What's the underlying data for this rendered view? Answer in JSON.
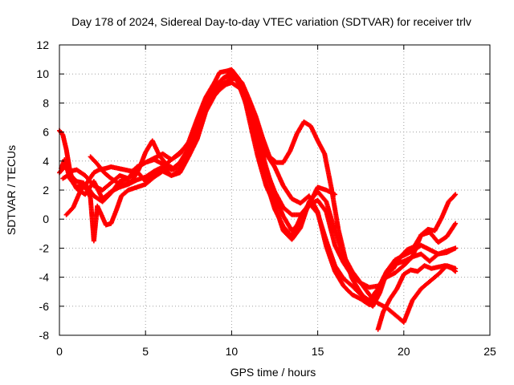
{
  "chart_data": {
    "type": "scatter",
    "title": "Day 178 of 2024, Sidereal Day-to-day VTEC variation (SDTVAR) for receiver trlv",
    "xlabel": "GPS time / hours",
    "ylabel": "SDTVAR / TECUs",
    "xlim": [
      0,
      25
    ],
    "ylim": [
      -8,
      12
    ],
    "x_ticks": [
      "0",
      "5",
      "10",
      "15",
      "20",
      "25"
    ],
    "y_ticks": [
      "-8",
      "-6",
      "-4",
      "-2",
      "0",
      "2",
      "4",
      "6",
      "8",
      "10",
      "12"
    ],
    "grid": true,
    "marker": "+",
    "series_color": "#ff0000",
    "series": [
      {
        "x": [
          0.0,
          0.3,
          0.6,
          1.0,
          1.5,
          2.0,
          2.5,
          3.0,
          3.5,
          4.0,
          4.5,
          5.0,
          5.5,
          6.0,
          6.5,
          7.0,
          7.5,
          8.0,
          8.5,
          9.0,
          9.5,
          10.0,
          10.3,
          10.6,
          11.0,
          11.5,
          12.0,
          12.5,
          13.0,
          13.5,
          14.0,
          14.5,
          15.0,
          15.5,
          16.0
        ],
        "y": [
          3.2,
          3.6,
          3.3,
          3.4,
          3.0,
          2.3,
          2.0,
          2.5,
          3.0,
          2.8,
          3.3,
          2.6,
          3.0,
          3.6,
          4.1,
          4.6,
          5.2,
          6.2,
          7.6,
          8.6,
          9.1,
          9.6,
          9.8,
          9.2,
          7.9,
          5.8,
          3.6,
          1.6,
          0.2,
          -0.8,
          -0.2,
          1.0,
          2.2,
          2.0,
          1.7
        ]
      },
      {
        "x": [
          0.0,
          0.2,
          0.4,
          0.6,
          0.8,
          1.0,
          1.5,
          2.0,
          2.5,
          3.0,
          3.5,
          4.0,
          4.5,
          5.0,
          5.5,
          6.0,
          6.5,
          7.0,
          7.5,
          8.0,
          8.5,
          9.0,
          9.5,
          10.0,
          10.5,
          11.0,
          11.5,
          12.0,
          12.5,
          13.0,
          13.5,
          14.0,
          14.5,
          15.0,
          15.5,
          16.0,
          16.5,
          17.0,
          17.5,
          18.0,
          18.5,
          19.0,
          19.5,
          20.0,
          20.5,
          21.0,
          21.5,
          22.0,
          22.5,
          23.0
        ],
        "y": [
          6.1,
          5.8,
          4.8,
          3.4,
          2.5,
          2.1,
          1.7,
          2.6,
          1.4,
          1.9,
          2.2,
          2.4,
          2.7,
          2.9,
          3.3,
          3.6,
          3.0,
          3.3,
          4.6,
          6.6,
          8.1,
          9.1,
          9.7,
          9.9,
          9.3,
          7.6,
          5.0,
          2.6,
          0.7,
          -0.5,
          -1.2,
          0.1,
          1.1,
          0.4,
          -1.5,
          -3.2,
          -4.1,
          -4.6,
          -5.2,
          -5.6,
          -4.8,
          -3.6,
          -2.8,
          -2.5,
          -2.2,
          -1.8,
          -2.1,
          -2.4,
          -2.3,
          -2.0
        ]
      },
      {
        "x": [
          0.1,
          0.3,
          0.6,
          1.0,
          1.5,
          2.0,
          2.5,
          3.0,
          3.5,
          4.0,
          4.5,
          5.0,
          5.5,
          6.0,
          6.5,
          7.0,
          7.5,
          8.0,
          8.5,
          9.0,
          9.5,
          10.0,
          10.3,
          10.7,
          11.0,
          11.5,
          12.0,
          12.5,
          13.0,
          13.5,
          14.0,
          14.5,
          15.0,
          15.5,
          16.0,
          16.5,
          17.0,
          17.5,
          18.0,
          18.5,
          19.0,
          19.5,
          20.0,
          20.5,
          21.0,
          21.5,
          22.0,
          22.5,
          23.0
        ],
        "y": [
          3.5,
          4.1,
          2.8,
          2.2,
          2.4,
          1.6,
          1.2,
          1.8,
          2.6,
          2.8,
          3.6,
          3.9,
          4.1,
          3.8,
          3.4,
          3.5,
          4.6,
          6.1,
          7.9,
          8.9,
          9.7,
          10.1,
          9.6,
          8.6,
          7.0,
          4.4,
          2.3,
          1.0,
          -0.8,
          -1.4,
          -0.6,
          1.2,
          1.9,
          1.2,
          -0.8,
          -2.5,
          -3.6,
          -4.4,
          -5.2,
          -5.8,
          -6.1,
          -6.6,
          -7.1,
          -5.6,
          -4.8,
          -4.3,
          -3.8,
          -3.2,
          -3.4
        ]
      },
      {
        "x": [
          0.4,
          0.8,
          1.2,
          1.6,
          2.0,
          2.3,
          2.7,
          3.0,
          3.4,
          3.8,
          4.2,
          4.6,
          5.0,
          5.5,
          6.0,
          6.5,
          7.0,
          7.5,
          8.0,
          8.5,
          9.0,
          9.3,
          9.7,
          10.0,
          10.4,
          10.8,
          11.2,
          11.6,
          12.0,
          12.5,
          13.0,
          13.5,
          14.0,
          14.5,
          15.0,
          15.5,
          16.0,
          16.5,
          17.0,
          17.5,
          18.0,
          18.5,
          19.0,
          19.5,
          20.0,
          20.5,
          21.0,
          21.5,
          22.0,
          22.5,
          23.0
        ],
        "y": [
          0.3,
          0.8,
          1.9,
          2.5,
          3.2,
          3.4,
          3.5,
          3.6,
          3.5,
          3.4,
          3.3,
          3.6,
          3.9,
          4.2,
          4.5,
          4.1,
          4.5,
          5.3,
          6.9,
          8.4,
          9.4,
          10.1,
          10.2,
          10.3,
          9.7,
          8.4,
          7.1,
          5.8,
          4.5,
          3.6,
          2.3,
          1.4,
          1.1,
          1.6,
          0.5,
          -1.9,
          -3.6,
          -4.6,
          -5.2,
          -5.5,
          -5.9,
          -4.9,
          -3.8,
          -3.1,
          -2.9,
          -2.6,
          -2.4,
          -2.9,
          -2.4,
          -2.2,
          -2.0
        ]
      },
      {
        "x": [
          1.8,
          2.2,
          2.6,
          3.0,
          3.4,
          3.8,
          4.2,
          4.6,
          5.0,
          5.4,
          5.8,
          6.2,
          6.6,
          7.0,
          7.4,
          7.8,
          8.2,
          8.6,
          9.0,
          9.4,
          9.8,
          10.2,
          10.6,
          11.0,
          11.4,
          11.8,
          12.2,
          12.6,
          13.0,
          13.4,
          13.8,
          14.2,
          14.6,
          15.0,
          15.4,
          15.8,
          16.2,
          16.6,
          17.0,
          17.4,
          17.8,
          18.2,
          18.6,
          19.0,
          19.4,
          19.8,
          20.2,
          20.6,
          21.0,
          21.4,
          21.8,
          22.2,
          22.6,
          23.0
        ],
        "y": [
          4.3,
          3.8,
          3.2,
          2.8,
          2.5,
          2.4,
          2.6,
          3.4,
          4.6,
          5.4,
          4.4,
          3.8,
          3.5,
          3.9,
          4.7,
          5.8,
          7.1,
          8.3,
          8.9,
          9.3,
          9.5,
          9.9,
          9.4,
          8.3,
          7.1,
          5.6,
          4.3,
          3.9,
          3.9,
          4.7,
          5.9,
          6.7,
          6.4,
          5.4,
          4.5,
          2.1,
          -0.7,
          -2.7,
          -4.1,
          -4.9,
          -5.6,
          -6.0,
          -5.1,
          -3.7,
          -3.4,
          -2.6,
          -2.1,
          -1.9,
          -1.1,
          -0.7,
          -0.8,
          0.1,
          1.2,
          1.7
        ]
      },
      {
        "x": [
          0.2,
          0.6,
          1.0,
          1.4,
          1.8,
          2.0,
          2.2,
          2.4,
          2.7,
          3.0,
          3.3,
          3.6,
          4.0,
          4.5,
          5.0,
          5.5,
          6.0,
          6.5,
          7.0,
          7.5,
          8.0,
          8.5,
          9.0,
          9.5,
          10.0,
          10.5,
          11.0,
          11.5,
          12.0,
          12.5,
          13.0,
          13.5,
          14.0,
          14.5,
          15.0,
          15.5,
          16.0,
          16.5,
          17.0,
          17.5,
          18.0,
          18.5,
          19.0,
          19.5,
          20.0,
          20.5,
          21.0,
          21.5,
          22.0,
          22.5,
          23.0
        ],
        "y": [
          2.8,
          3.1,
          2.6,
          2.5,
          1.5,
          -1.5,
          0.9,
          0.4,
          -0.4,
          -0.3,
          0.6,
          1.6,
          2.0,
          2.2,
          2.4,
          2.9,
          3.3,
          3.0,
          3.2,
          4.3,
          5.5,
          7.4,
          8.5,
          9.2,
          9.4,
          9.0,
          7.4,
          5.0,
          3.4,
          1.9,
          0.8,
          0.3,
          0.3,
          1.0,
          1.3,
          0.5,
          -1.8,
          -3.0,
          -3.9,
          -4.4,
          -4.7,
          -4.6,
          -4.0,
          -3.7,
          -3.2,
          -2.6,
          -1.1,
          -0.9,
          -1.6,
          -1.2,
          -0.3
        ]
      },
      {
        "x": [
          18.5,
          18.8,
          19.2,
          19.6,
          20.0,
          20.4,
          20.8,
          21.2,
          21.6,
          22.0,
          22.4,
          22.8,
          23.0
        ],
        "y": [
          -7.6,
          -6.4,
          -5.5,
          -4.8,
          -3.8,
          -3.5,
          -3.6,
          -3.2,
          -3.4,
          -3.3,
          -3.2,
          -3.4,
          -3.6
        ]
      }
    ]
  }
}
